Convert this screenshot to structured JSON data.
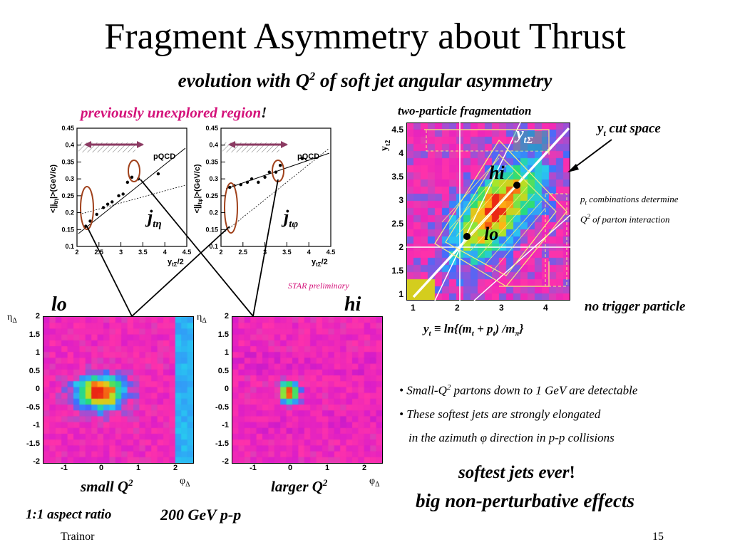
{
  "slide": {
    "title": "Fragment Asymmetry about Thrust",
    "subtitle_pre": "evolution with Q",
    "subtitle_sup": "2",
    "subtitle_post": " of soft jet angular asymmetry",
    "region_label": "previously unexplored region",
    "region_bang": "!",
    "star_prelim": "STAR preliminary",
    "lo_label": "lo",
    "hi_label": "hi",
    "small_q2": "small Q",
    "larger_q2": "larger Q",
    "q2_sup": "2",
    "aspect_ratio": "1:1 aspect ratio",
    "energy": "200 GeV p-p",
    "author": "Trainor",
    "page": "15"
  },
  "small_plots": {
    "pqcd": "pQCD",
    "ylabel_eta": "<|j",
    "ylabel_eta_sub": "tη",
    "ylabel_phi_sub": "tφ",
    "ylabel_end": "|>(GeV/c)",
    "xlabel": "y",
    "xlabel_sub": "tΣ",
    "xlabel_end": "/2",
    "jlabel": "j",
    "jsub_eta": "tη",
    "jsub_phi": "tφ",
    "xticks": [
      "2",
      "2.5",
      "3",
      "3.5",
      "4",
      "4.5"
    ],
    "yticks": [
      "0.1",
      "0.15",
      "0.2",
      "0.25",
      "0.3",
      "0.35",
      "0.4",
      "0.45"
    ]
  },
  "heatmaps": {
    "eta_label": "η",
    "eta_sub": "Δ",
    "phi_label": "φ",
    "phi_sub": "Δ",
    "yticks": [
      "2",
      "1.5",
      "1",
      "0.5",
      "0",
      "-0.5",
      "-1",
      "-1.5",
      "-2"
    ],
    "xticks": [
      "-1",
      "0",
      "1",
      "2"
    ]
  },
  "fragmentation": {
    "title": "two-particle fragmentation",
    "ylabel": "y",
    "ylabel_sub": "t2",
    "xticks": [
      "1",
      "2",
      "3",
      "4"
    ],
    "yticks": [
      "4.5",
      "4",
      "3.5",
      "3",
      "2.5",
      "2",
      "1.5",
      "1"
    ],
    "ysigma": "y",
    "ysigma_sub": "tΣ",
    "hi": "hi",
    "lo": "lo",
    "cut_space": "cut space",
    "cut_y": "y",
    "cut_sub": "t",
    "pt_note_1": "combinations determine",
    "pt_note_p": "p",
    "pt_note_sub": "t",
    "pt_note_2": "Q",
    "pt_note_sup": "2",
    "pt_note_3": " of parton interaction",
    "no_trigger": "no trigger particle",
    "formula_lhs": "y",
    "formula_lhs_sub": "t",
    "formula_rhs": "≡ ln{(m",
    "formula_m_sub": "t",
    "formula_plus": " + p",
    "formula_p_sub": "t",
    "formula_end": ") /m",
    "formula_pi_sub": "π",
    "formula_close": "}"
  },
  "bullets": [
    {
      "text": "• Small-Q",
      "sup": "2",
      "rest": " partons down to 1 GeV are detectable"
    },
    {
      "text": "• These softest jets are strongly elongated"
    },
    {
      "text": "in the azimuth φ direction in p-p collisions"
    }
  ],
  "conclusion": {
    "line1": "softest jets ever",
    "bang": "!",
    "line2": "big non-perturbative effects"
  },
  "chart_data": [
    {
      "type": "scatter",
      "title": "",
      "xlabel": "yₜΣ/2",
      "ylabel": "<|jₜη|>(GeV/c)",
      "xlim": [
        2,
        4.5
      ],
      "ylim": [
        0.1,
        0.45
      ],
      "series": [
        {
          "x": [
            2.2,
            2.3,
            2.45,
            2.6,
            2.7,
            2.8,
            2.95,
            3.05,
            3.15,
            3.25,
            3.4,
            3.85
          ],
          "y": [
            0.16,
            0.175,
            0.195,
            0.215,
            0.225,
            0.232,
            0.25,
            0.255,
            0.29,
            0.305,
            0.3,
            0.315
          ]
        }
      ]
    },
    {
      "type": "scatter",
      "title": "",
      "xlabel": "yₜΣ/2",
      "ylabel": "<|jₜφ|>(GeV/c)",
      "xlim": [
        2,
        4.5
      ],
      "ylim": [
        0.1,
        0.45
      ],
      "series": [
        {
          "x": [
            2.2,
            2.3,
            2.45,
            2.6,
            2.7,
            2.85,
            3.0,
            3.1,
            3.25,
            3.35,
            3.85
          ],
          "y": [
            0.275,
            0.28,
            0.283,
            0.29,
            0.3,
            0.29,
            0.305,
            0.32,
            0.32,
            0.34,
            0.36
          ]
        }
      ]
    }
  ]
}
